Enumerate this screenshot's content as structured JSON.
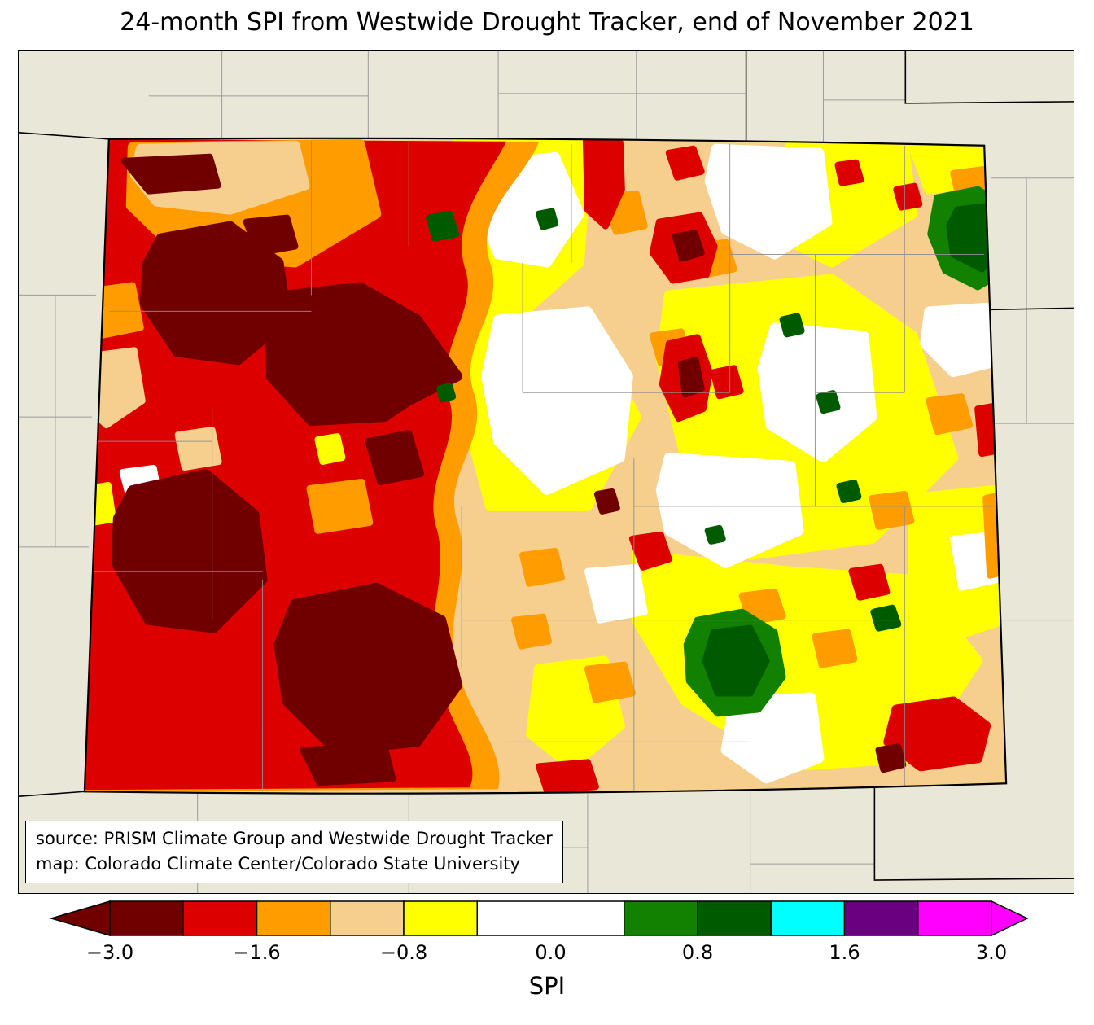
{
  "title": "24-month SPI from Westwide Drought Tracker, end of November 2021",
  "source_box": {
    "line1": "source: PRISM Climate Group and Westwide Drought Tracker",
    "line2": "map: Colorado Climate Center/Colorado State University"
  },
  "map": {
    "region": "Colorado",
    "variable": "24-month SPI"
  },
  "palette": {
    "background": "#e9e8d8",
    "maroon": "#700000",
    "red": "#dd0000",
    "orange": "#ff9c00",
    "tan": "#f6cf8e",
    "yellow": "#ffff00",
    "white": "#ffffff",
    "green": "#128000",
    "dark_green": "#005a00",
    "cyan": "#00ffff",
    "purple": "#6a0080",
    "magenta": "#ff00ff"
  },
  "colorbar": {
    "axis_label": "SPI",
    "total_units": 12,
    "left_arrow": "maroon",
    "right_arrow": "magenta",
    "segments": [
      {
        "name": "maroon",
        "units": 1
      },
      {
        "name": "red",
        "units": 1
      },
      {
        "name": "orange",
        "units": 1
      },
      {
        "name": "tan",
        "units": 1
      },
      {
        "name": "yellow",
        "units": 1
      },
      {
        "name": "white",
        "units": 2
      },
      {
        "name": "green",
        "units": 1
      },
      {
        "name": "dark_green",
        "units": 1
      },
      {
        "name": "cyan",
        "units": 1
      },
      {
        "name": "purple",
        "units": 1
      },
      {
        "name": "magenta",
        "units": 1
      }
    ],
    "ticks": [
      {
        "label": "−3.0",
        "units": 0
      },
      {
        "label": "−1.6",
        "units": 2
      },
      {
        "label": "−0.8",
        "units": 4
      },
      {
        "label": "0.0",
        "units": 6
      },
      {
        "label": "0.8",
        "units": 8
      },
      {
        "label": "1.6",
        "units": 10
      },
      {
        "label": "3.0",
        "units": 12
      }
    ]
  }
}
